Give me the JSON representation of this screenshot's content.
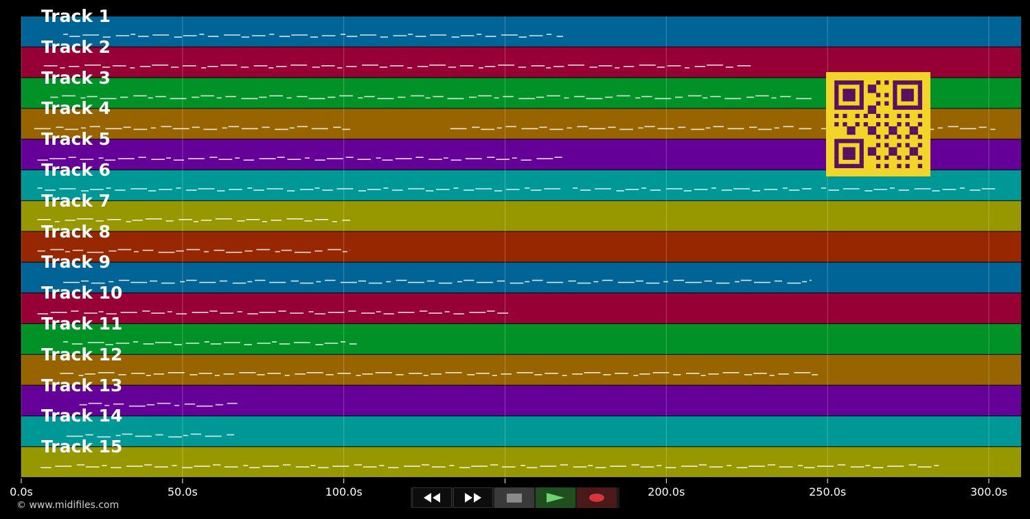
{
  "tracks": [
    {
      "label": "Track 1",
      "color": "#006497"
    },
    {
      "label": "Track 2",
      "color": "#970034"
    },
    {
      "label": "Track 3",
      "color": "#009127"
    },
    {
      "label": "Track 4",
      "color": "#976400"
    },
    {
      "label": "Track 5",
      "color": "#640097"
    },
    {
      "label": "Track 6",
      "color": "#009797"
    },
    {
      "label": "Track 7",
      "color": "#979700"
    },
    {
      "label": "Track 8",
      "color": "#972700"
    },
    {
      "label": "Track 9",
      "color": "#006497"
    },
    {
      "label": "Track 10",
      "color": "#970034"
    },
    {
      "label": "Track 11",
      "color": "#009127"
    },
    {
      "label": "Track 12",
      "color": "#976400"
    },
    {
      "label": "Track 13",
      "color": "#640097"
    },
    {
      "label": "Track 14",
      "color": "#009797"
    },
    {
      "label": "Track 15",
      "color": "#979700"
    }
  ],
  "note_activity": {
    "unit": "seconds",
    "ranges": [
      [
        [
          13,
          168
        ]
      ],
      [
        [
          7,
          227
        ]
      ],
      [
        [
          9,
          245
        ]
      ],
      [
        [
          4,
          102
        ],
        [
          133,
          245
        ],
        [
          248,
          302
        ]
      ],
      [
        [
          5,
          168
        ]
      ],
      [
        [
          5,
          168
        ],
        [
          171,
          245
        ],
        [
          248,
          302
        ]
      ],
      [
        [
          5,
          102
        ]
      ],
      [
        [
          5,
          102
        ]
      ],
      [
        [
          13,
          245
        ]
      ],
      [
        [
          5,
          151
        ]
      ],
      [
        [
          13,
          104
        ]
      ],
      [
        [
          12,
          247
        ]
      ],
      [
        [
          18,
          67
        ]
      ],
      [
        [
          14,
          66
        ]
      ],
      [
        [
          6,
          285
        ]
      ]
    ]
  },
  "time_axis": {
    "unit": "s",
    "max": 310,
    "ticks": [
      {
        "value": 0,
        "label": "0.0s"
      },
      {
        "value": 50,
        "label": "50.0s"
      },
      {
        "value": 100,
        "label": "100.0s"
      },
      {
        "value": 150,
        "label": "150.0s"
      },
      {
        "value": 200,
        "label": "200.0s"
      },
      {
        "value": 250,
        "label": "250.0s"
      },
      {
        "value": 300,
        "label": "300.0s"
      }
    ]
  },
  "copyright": "© www.midifiles.com",
  "transport": {
    "rewind_icon": "rewind-icon",
    "forward_icon": "fast-forward-icon",
    "stop_icon": "stop-icon",
    "play_icon": "play-icon",
    "record_icon": "record-icon",
    "colors": {
      "play": "#6fd16f",
      "record": "#d8353f",
      "stop": "#8a8a8a"
    }
  },
  "qr_code": {
    "foreground": "#5a1060",
    "background": "#f3d52a"
  }
}
